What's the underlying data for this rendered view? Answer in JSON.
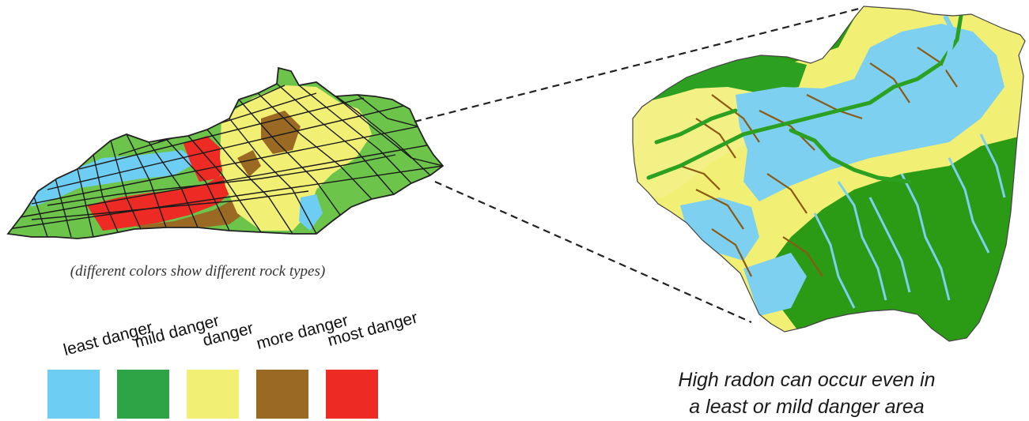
{
  "caption_left": "(different colors show different rock types)",
  "legend": [
    {
      "label": "least danger",
      "color": "#6dcdf2"
    },
    {
      "label": "mild danger",
      "color": "#2fa446"
    },
    {
      "label": "danger",
      "color": "#f1ef74"
    },
    {
      "label": "more danger",
      "color": "#9a6a24"
    },
    {
      "label": "most danger",
      "color": "#ee2a24"
    }
  ],
  "caption_right": {
    "line1": "High radon can occur even in",
    "line2": "a least or mild danger area"
  }
}
